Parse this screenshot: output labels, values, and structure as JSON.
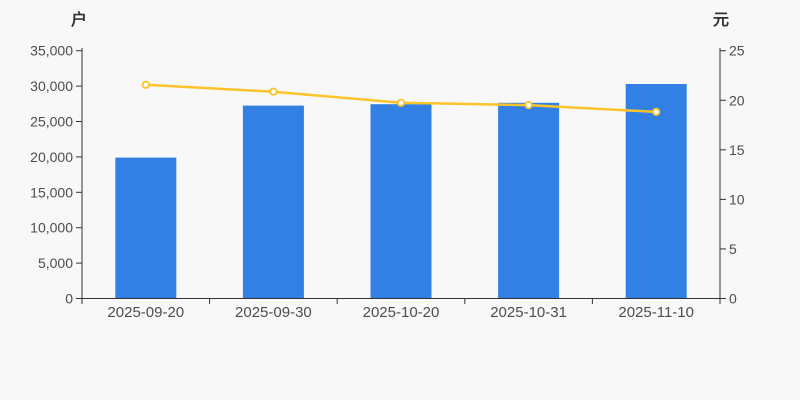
{
  "chart": {
    "left_axis_name": "户",
    "right_axis_name": "元"
  },
  "style": {
    "background": "#f8f8f8",
    "bar_color": "#3380e4",
    "line_color": "#fdc32b",
    "marker_fill": "#ffffff",
    "axis_color": "#333333",
    "tick_label_color": "#4d4d4d"
  },
  "chart_data": {
    "type": "combo",
    "categories": [
      "2025-09-20",
      "2025-09-30",
      "2025-10-20",
      "2025-10-31",
      "2025-11-10"
    ],
    "series": [
      {
        "name": "户",
        "type": "bar",
        "y_axis": "left",
        "values": [
          19900,
          27240,
          27450,
          27640,
          30290
        ]
      },
      {
        "name": "元",
        "type": "line",
        "y_axis": "right",
        "values": [
          21.56,
          20.86,
          19.74,
          19.51,
          18.83
        ]
      }
    ],
    "left_axis": {
      "label": "户",
      "min": 0,
      "max": 35000,
      "tick_values": [
        0,
        5000,
        10000,
        15000,
        20000,
        25000,
        30000,
        35000
      ],
      "tick_labels": [
        "0",
        "5,000",
        "10,000",
        "15,000",
        "20,000",
        "25,000",
        "30,000",
        "35,000"
      ]
    },
    "right_axis": {
      "label": "元",
      "min": 0,
      "max": 25,
      "tick_values": [
        0,
        5,
        10,
        15,
        20,
        25
      ],
      "tick_labels": [
        "0",
        "5",
        "10",
        "15",
        "20",
        "25"
      ]
    },
    "grid": false,
    "legend": "none"
  }
}
